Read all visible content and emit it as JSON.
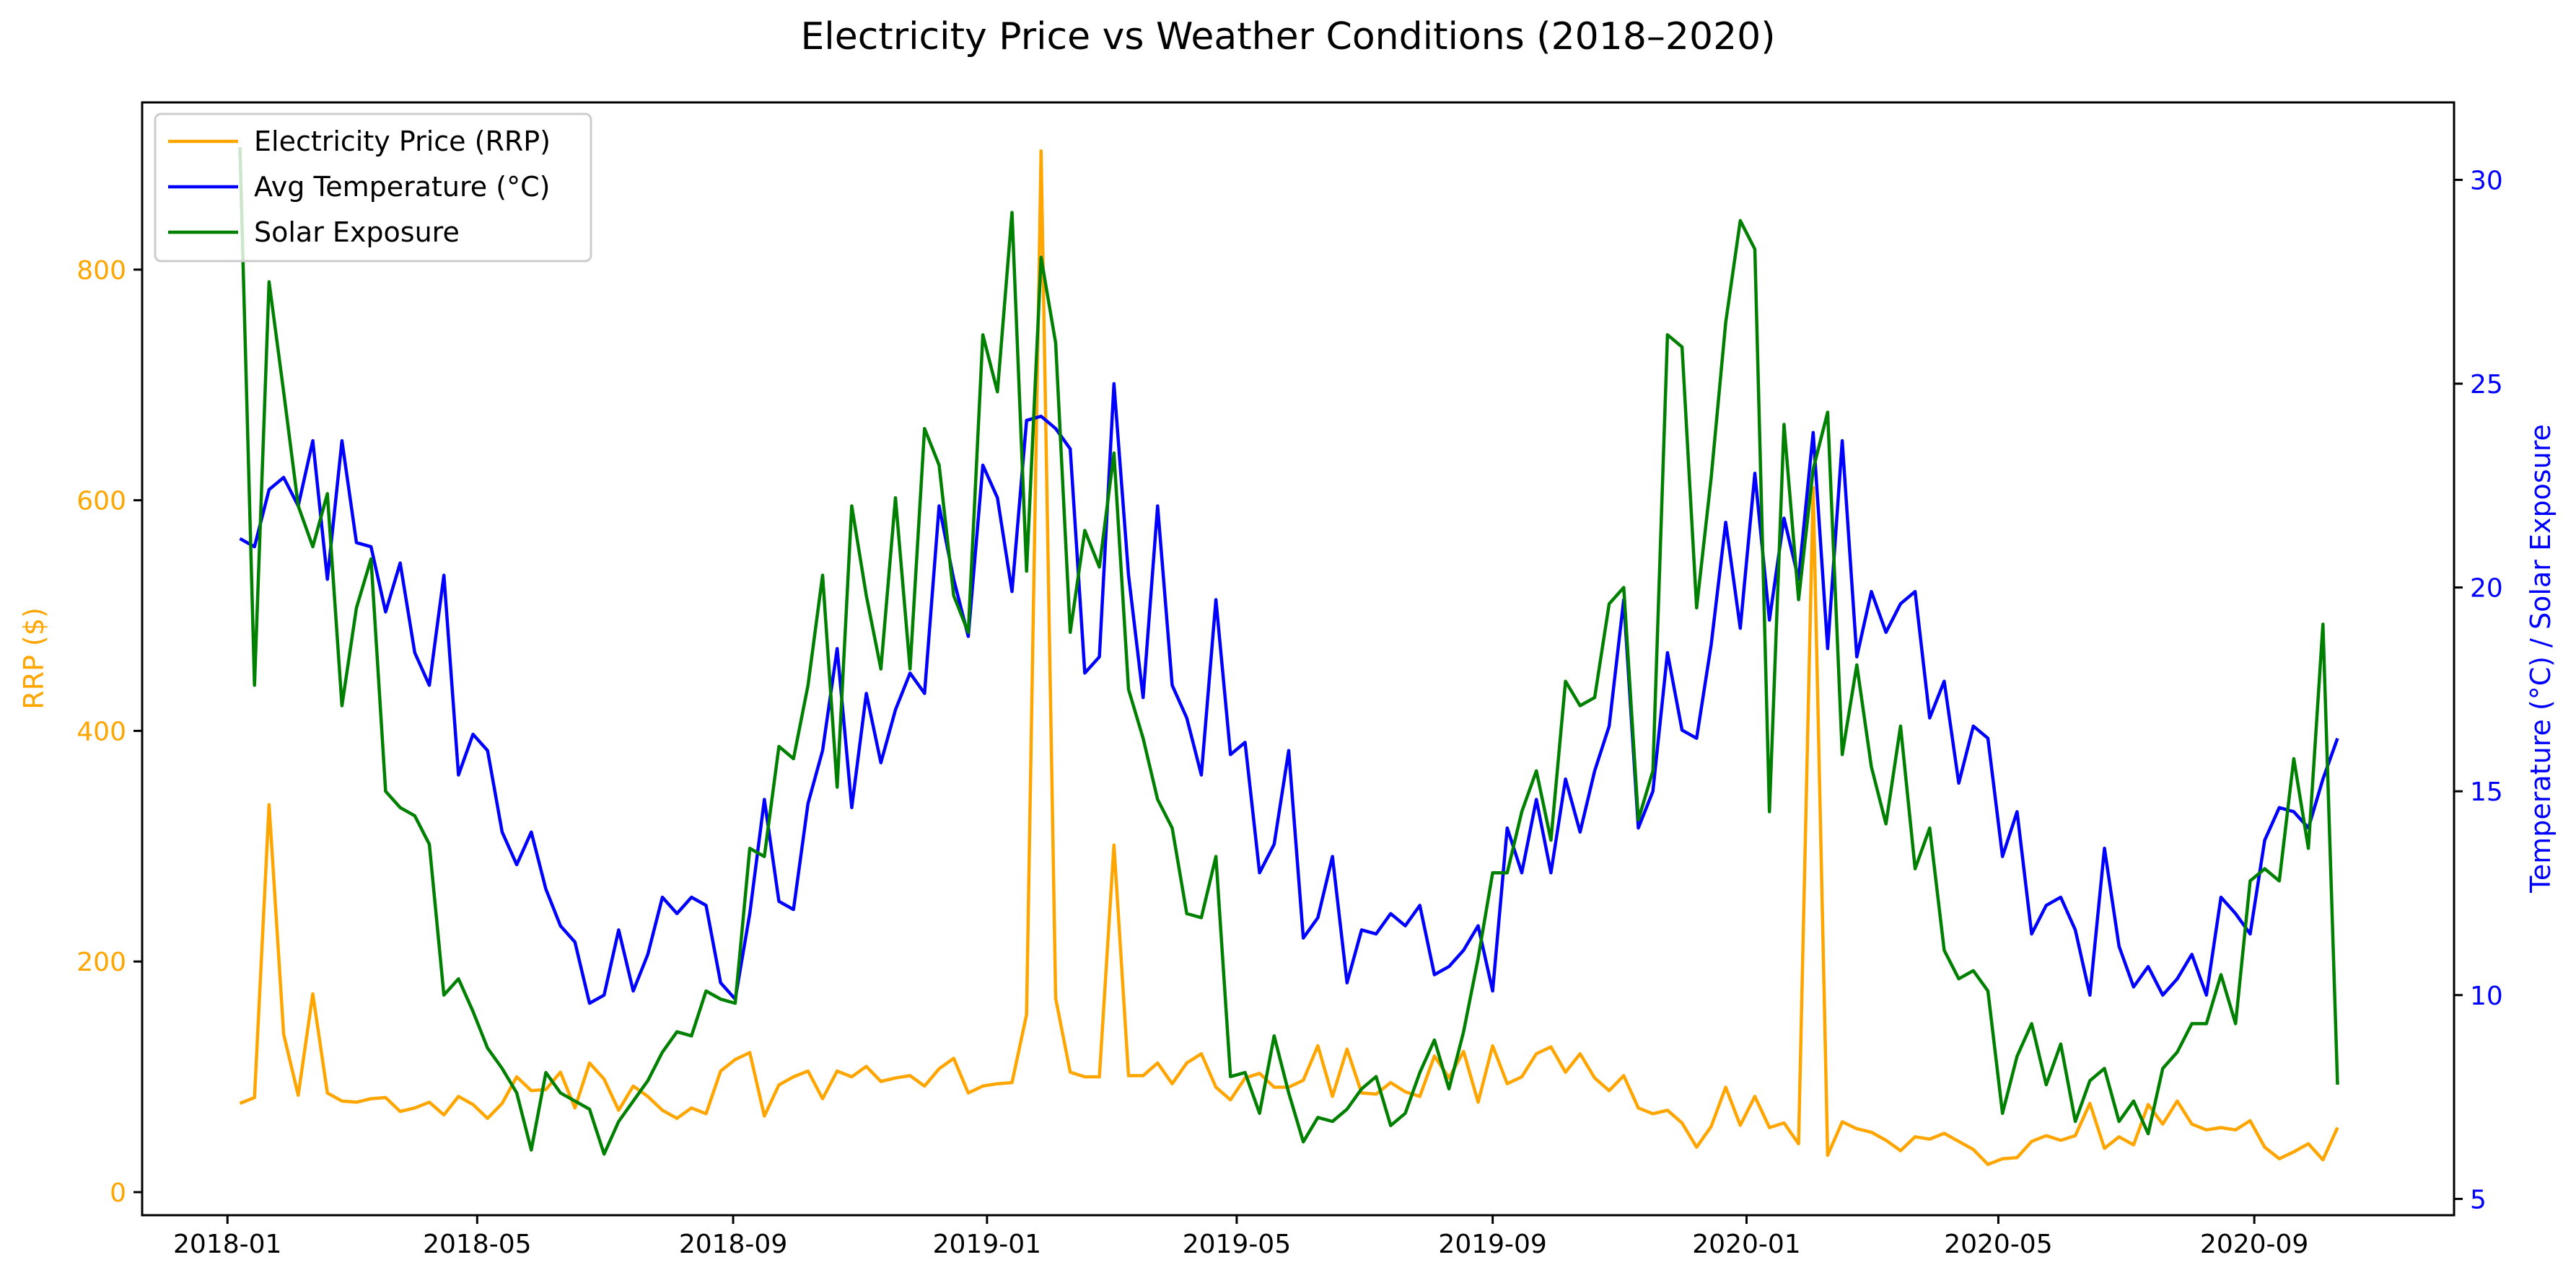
{
  "chart_data": {
    "type": "line",
    "title": "Electricity Price vs Weather Conditions (2018–2020)",
    "xlabel": "",
    "ylabel_left": "RRP ($)",
    "ylabel_right": "Temperature (°C) / Solar Exposure",
    "x_tick_labels": [
      "2018-01",
      "2018-05",
      "2018-09",
      "2019-01",
      "2019-05",
      "2019-09",
      "2020-01",
      "2020-05",
      "2020-09"
    ],
    "x_start": "2018-01-07",
    "x_step_days": 7,
    "x_range": [
      "2017-11-21",
      "2020-12-06"
    ],
    "left_axis": {
      "ylim": [
        -20,
        945
      ],
      "ticks": [
        0,
        200,
        400,
        600,
        800
      ],
      "color": "#FFA500"
    },
    "right_axis": {
      "ylim": [
        4.6,
        31.9
      ],
      "ticks": [
        5,
        10,
        15,
        20,
        25,
        30
      ],
      "color": "#0000FF"
    },
    "legend_position": "top-left",
    "grid": false,
    "series": [
      {
        "name": "Electricity Price (RRP)",
        "axis": "left",
        "color": "#FFA500",
        "values": [
          77,
          82,
          336,
          137,
          84,
          172,
          86,
          79,
          78,
          81,
          82,
          70,
          73,
          78,
          67,
          83,
          76,
          64,
          77,
          100,
          88,
          89,
          104,
          73,
          112,
          98,
          71,
          92,
          83,
          71,
          64,
          73,
          68,
          105,
          115,
          121,
          66,
          93,
          100,
          105,
          81,
          105,
          100,
          109,
          96,
          99,
          101,
          92,
          107,
          116,
          86,
          92,
          94,
          95,
          154,
          903,
          168,
          104,
          100,
          100,
          301,
          101,
          101,
          112,
          94,
          112,
          120,
          91,
          80,
          99,
          103,
          91,
          91,
          97,
          127,
          83,
          124,
          86,
          85,
          95,
          87,
          83,
          118,
          99,
          122,
          78,
          127,
          94,
          100,
          120,
          126,
          104,
          120,
          99,
          88,
          101,
          73,
          68,
          71,
          60,
          39,
          57,
          91,
          58,
          83,
          56,
          60,
          42,
          611,
          32,
          61,
          55,
          52,
          45,
          36,
          48,
          46,
          51,
          44,
          37,
          24,
          29,
          30,
          44,
          49,
          45,
          49,
          77,
          38,
          48,
          41,
          76,
          59,
          79,
          59,
          54,
          56,
          54,
          62,
          39,
          29,
          35,
          42,
          28,
          56
        ]
      },
      {
        "name": "Avg Temperature (°C)",
        "axis": "right",
        "color": "#0000FF",
        "values": [
          21.2,
          21.0,
          22.4,
          22.7,
          22.0,
          23.6,
          20.2,
          23.6,
          21.1,
          21.0,
          19.4,
          20.6,
          18.4,
          17.6,
          20.3,
          15.4,
          16.4,
          16.0,
          14.0,
          13.2,
          14.0,
          12.6,
          11.7,
          11.3,
          9.8,
          10.0,
          11.6,
          10.1,
          11.0,
          12.4,
          12.0,
          12.4,
          12.2,
          10.3,
          9.9,
          12.0,
          14.8,
          12.3,
          12.1,
          14.7,
          16.0,
          18.5,
          14.6,
          17.4,
          15.7,
          17.0,
          17.9,
          17.4,
          22.0,
          20.2,
          18.8,
          23.0,
          22.2,
          19.9,
          24.1,
          24.2,
          23.9,
          23.4,
          17.9,
          18.3,
          25.0,
          20.3,
          17.3,
          22.0,
          17.6,
          16.8,
          15.4,
          19.7,
          15.9,
          16.2,
          13.0,
          13.7,
          16.0,
          11.4,
          11.9,
          13.4,
          10.3,
          11.6,
          11.5,
          12.0,
          11.7,
          12.2,
          10.5,
          10.7,
          11.1,
          11.7,
          10.1,
          14.1,
          13.0,
          14.8,
          13.0,
          15.3,
          14.0,
          15.5,
          16.6,
          19.7,
          14.1,
          15.0,
          18.4,
          16.5,
          16.3,
          18.6,
          21.6,
          19.0,
          22.8,
          19.2,
          21.7,
          20.2,
          23.8,
          18.5,
          23.6,
          18.3,
          19.9,
          18.9,
          19.6,
          19.9,
          16.8,
          17.7,
          15.2,
          16.6,
          16.3,
          13.4,
          14.5,
          11.5,
          12.2,
          12.4,
          11.6,
          10.0,
          13.6,
          11.2,
          10.2,
          10.7,
          10.0,
          10.4,
          11.0,
          10.0,
          12.4,
          12.0,
          11.5,
          13.8,
          14.6,
          14.5,
          14.1,
          15.3,
          16.3
        ]
      },
      {
        "name": "Solar Exposure",
        "axis": "right",
        "color": "#008000",
        "values": [
          30.8,
          17.6,
          27.5,
          24.8,
          22.0,
          21.0,
          22.3,
          17.1,
          19.5,
          20.7,
          15.0,
          14.6,
          14.4,
          13.7,
          10.0,
          10.4,
          9.6,
          8.7,
          8.2,
          7.6,
          6.2,
          8.1,
          7.6,
          7.4,
          7.2,
          6.1,
          6.9,
          7.4,
          7.9,
          8.6,
          9.1,
          9.0,
          10.1,
          9.9,
          9.8,
          13.6,
          13.4,
          16.1,
          15.8,
          17.6,
          20.3,
          15.1,
          22.0,
          19.8,
          18.0,
          22.2,
          18.0,
          23.9,
          23.0,
          19.8,
          18.9,
          26.2,
          24.8,
          29.2,
          20.4,
          28.1,
          26.0,
          18.9,
          21.4,
          20.5,
          23.3,
          17.5,
          16.3,
          14.8,
          14.1,
          12.0,
          11.9,
          13.4,
          8.0,
          8.1,
          7.1,
          9.0,
          7.6,
          6.4,
          7.0,
          6.9,
          7.2,
          7.7,
          8.0,
          6.8,
          7.1,
          8.1,
          8.9,
          7.7,
          9.1,
          10.9,
          13.0,
          13.0,
          14.5,
          15.5,
          13.8,
          17.7,
          17.1,
          17.3,
          19.6,
          20.0,
          14.3,
          15.5,
          26.2,
          25.9,
          19.5,
          22.7,
          26.5,
          29.0,
          28.3,
          14.5,
          24.0,
          19.7,
          22.9,
          24.3,
          15.9,
          18.1,
          15.6,
          14.2,
          16.6,
          13.1,
          14.1,
          11.1,
          10.4,
          10.6,
          10.1,
          7.1,
          8.5,
          9.3,
          7.8,
          8.8,
          6.9,
          7.9,
          8.2,
          6.9,
          7.4,
          6.6,
          8.2,
          8.6,
          9.3,
          9.3,
          10.5,
          9.3,
          12.8,
          13.1,
          12.8,
          15.8,
          13.6,
          19.1,
          7.8
        ]
      }
    ]
  }
}
